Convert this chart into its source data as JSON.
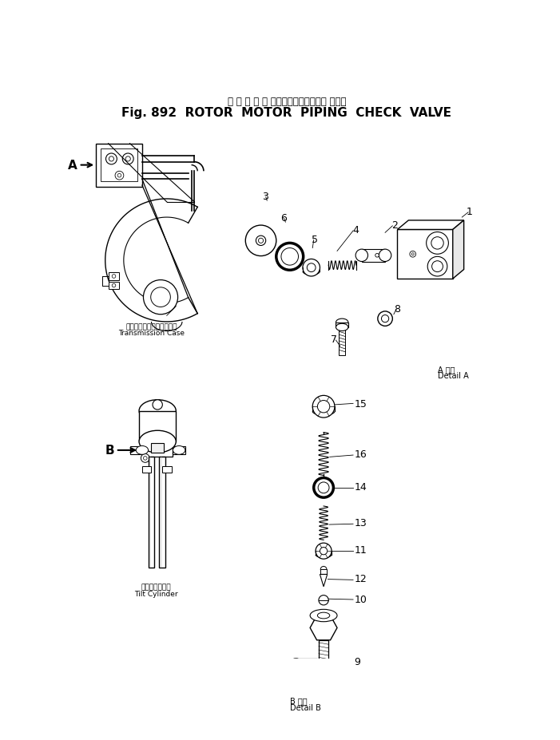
{
  "title_japanese": "ロ ー タ モ ー タバイピングチェック バルブ",
  "title_english": "Fig. 892  ROTOR  MOTOR  PIPING  CHECK  VALVE",
  "bg_color": "#ffffff",
  "text_color": "#000000",
  "label_A": "A",
  "label_B": "B",
  "transmission_case_japanese": "トランスミッションケース",
  "transmission_case_english": "Transmission Case",
  "tilt_cylinder_japanese": "チルトシリンダ",
  "tilt_cylinder_english": "Tilt Cylinder",
  "detail_a_japanese": "A 詳細",
  "detail_a_english": "Detail A",
  "detail_b_japanese": "B 詳細",
  "detail_b_english": "Detail B"
}
